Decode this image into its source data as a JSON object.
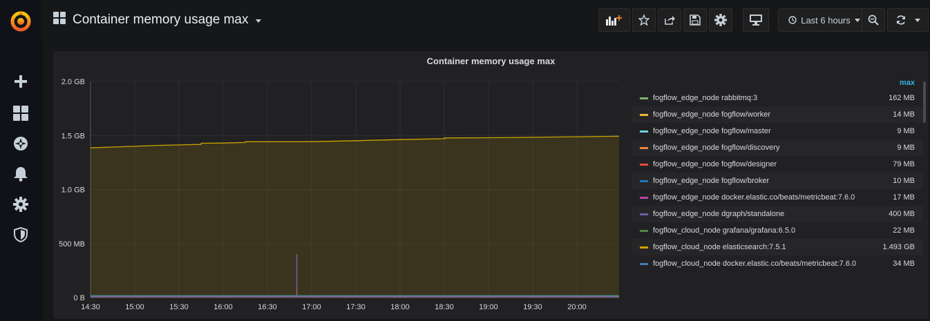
{
  "header": {
    "title": "Container memory usage max",
    "time_range": "Last 6 hours"
  },
  "sidebar": {
    "items": [
      "plus-icon",
      "dashboards-icon",
      "explore-compass-icon",
      "alerting-bell-icon",
      "configuration-gear-icon",
      "shield-icon"
    ]
  },
  "panel": {
    "title": "Container memory usage max",
    "legend_column": "max"
  },
  "chart_data": {
    "type": "area",
    "title": "Container memory usage max",
    "xlabel": "",
    "ylabel": "",
    "x_ticks": [
      "14:30",
      "15:00",
      "15:30",
      "16:00",
      "16:30",
      "17:00",
      "17:30",
      "18:00",
      "18:30",
      "19:00",
      "19:30",
      "20:00"
    ],
    "y_ticks": [
      "0 B",
      "500 MB",
      "1.0 GB",
      "1.5 GB",
      "2.0 GB"
    ],
    "ylim": [
      0,
      2.0
    ],
    "y_unit": "GB",
    "grid": true,
    "legend_position": "right",
    "series": [
      {
        "name": "fogflow_edge_node rabbitmq:3",
        "color": "#7eb26d",
        "max": "162 MB"
      },
      {
        "name": "fogflow_edge_node fogflow/worker",
        "color": "#eab839",
        "max": "14 MB"
      },
      {
        "name": "fogflow_edge_node fogflow/master",
        "color": "#6ed0e0",
        "max": "9 MB"
      },
      {
        "name": "fogflow_edge_node fogflow/discovery",
        "color": "#ef843c",
        "max": "9 MB"
      },
      {
        "name": "fogflow_edge_node fogflow/designer",
        "color": "#e24d42",
        "max": "79 MB"
      },
      {
        "name": "fogflow_edge_node fogflow/broker",
        "color": "#1f78c1",
        "max": "10 MB"
      },
      {
        "name": "fogflow_edge_node docker.elastic.co/beats/metricbeat:7.6.0",
        "color": "#ba43a9",
        "max": "17 MB"
      },
      {
        "name": "fogflow_edge_node dgraph/standalone",
        "color": "#705da0",
        "max": "400 MB"
      },
      {
        "name": "fogflow_cloud_node grafana/grafana:6.5.0",
        "color": "#508642",
        "max": "22 MB"
      },
      {
        "name": "fogflow_cloud_node elasticsearch:7.5.1",
        "color": "#cca300",
        "max": "1.493 GB"
      },
      {
        "name": "fogflow_cloud_node docker.elastic.co/beats/metricbeat:7.6.0",
        "color": "#447ebc",
        "max": "34 MB"
      }
    ],
    "main_series": {
      "name": "fogflow_cloud_node elasticsearch:7.5.1",
      "points": [
        [
          "14:30",
          1.385
        ],
        [
          "14:45",
          1.393
        ],
        [
          "15:00",
          1.4
        ],
        [
          "15:15",
          1.408
        ],
        [
          "15:30",
          1.413
        ],
        [
          "15:45",
          1.418
        ],
        [
          "15:45",
          1.428
        ],
        [
          "16:00",
          1.43
        ],
        [
          "16:15",
          1.435
        ],
        [
          "16:15",
          1.442
        ],
        [
          "16:30",
          1.442
        ],
        [
          "17:00",
          1.443
        ],
        [
          "17:30",
          1.452
        ],
        [
          "18:00",
          1.462
        ],
        [
          "18:30",
          1.47
        ],
        [
          "18:30",
          1.477
        ],
        [
          "19:00",
          1.479
        ],
        [
          "19:30",
          1.483
        ],
        [
          "20:00",
          1.488
        ],
        [
          "20:30",
          1.493
        ]
      ]
    }
  }
}
